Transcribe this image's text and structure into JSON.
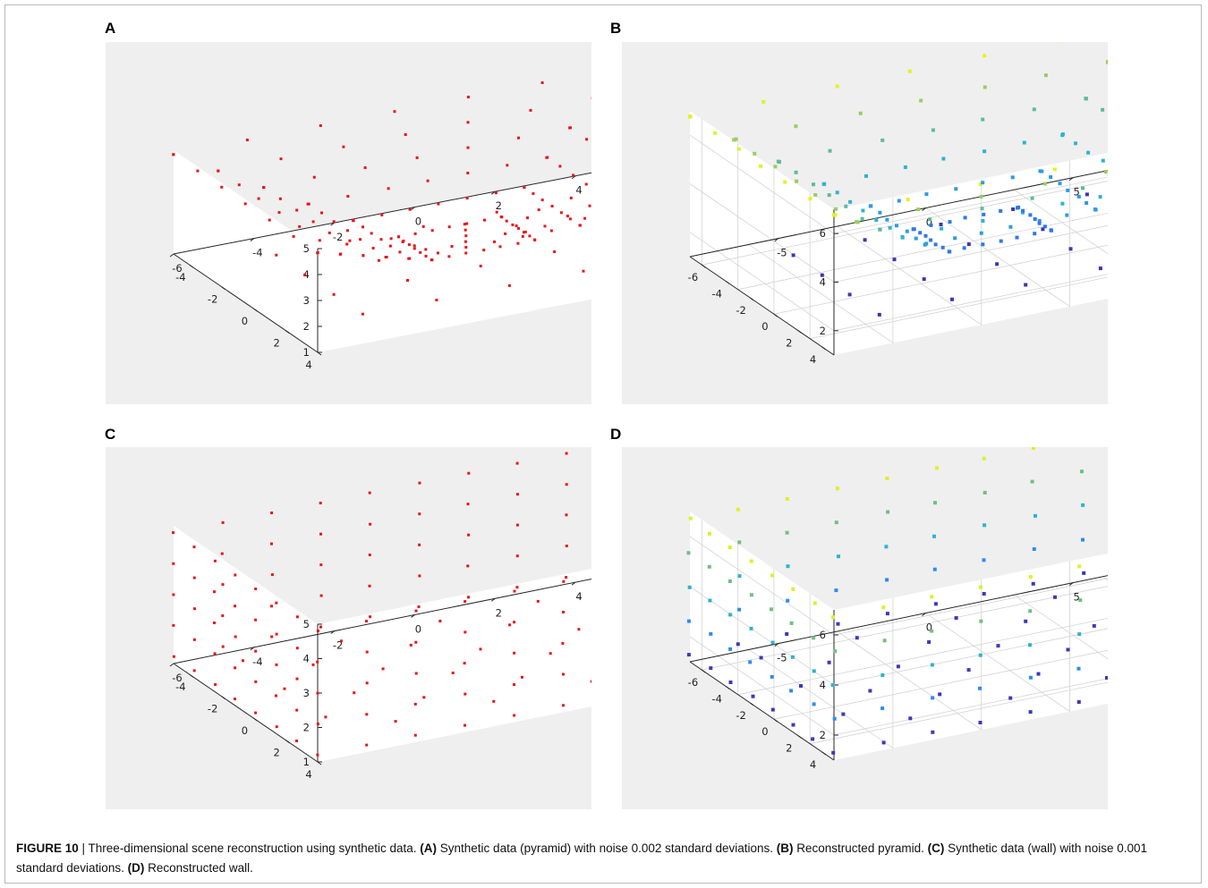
{
  "caption": {
    "figure_label": "FIGURE 10",
    "sep": " | ",
    "intro": "Three-dimensional scene reconstruction using synthetic data.",
    "parts": [
      {
        "label": "(A)",
        "text": "Synthetic data (pyramid) with noise 0.002 standard deviations."
      },
      {
        "label": "(B)",
        "text": "Reconstructed pyramid."
      },
      {
        "label": "(C)",
        "text": "Synthetic data (wall) with noise 0.001 standard deviations."
      },
      {
        "label": "(D)",
        "text": "Reconstructed wall."
      }
    ]
  },
  "colors": {
    "panel_bg": "#efefef",
    "axes_fill": "#ffffff",
    "grid": "#d4d4d4",
    "axis_line": "#262626",
    "red_marker": "#e8141b",
    "parula_low": "#3e26a8",
    "parula_mid": "#2ab5cf",
    "parula_high": "#f9fb0e"
  },
  "chart_data": [
    {
      "panel": "A",
      "type": "scatter",
      "subtype": "3d-scatter",
      "scene": "pyramid",
      "marker_color": "red",
      "grid": false,
      "x_ticks": [
        "-6",
        "-4",
        "-2",
        "0",
        "2",
        "4"
      ],
      "y_ticks": [
        "-4",
        "-2",
        "0",
        "2",
        "4"
      ],
      "z_ticks": [
        "1",
        "2",
        "3",
        "4",
        "5"
      ],
      "xlim": [
        -6,
        5
      ],
      "ylim": [
        -5,
        4
      ],
      "zlim": [
        1,
        5
      ],
      "grid_step": 1
    },
    {
      "panel": "B",
      "type": "scatter",
      "subtype": "3d-scatter",
      "scene": "pyramid",
      "marker_color": "parula-by-height",
      "grid": true,
      "x_ticks": [
        "-5",
        "0",
        "5"
      ],
      "y_ticks": [
        "-6",
        "-4",
        "-2",
        "0",
        "2",
        "4"
      ],
      "z_ticks": [
        "2",
        "4",
        "6"
      ],
      "xlim": [
        -8,
        7
      ],
      "ylim": [
        -7,
        5
      ],
      "zlim": [
        1,
        7
      ],
      "grid_step": 1.5
    },
    {
      "panel": "C",
      "type": "scatter",
      "subtype": "3d-scatter",
      "scene": "wall",
      "marker_color": "red",
      "grid": false,
      "x_ticks": [
        "-6",
        "-4",
        "-2",
        "0",
        "2",
        "4"
      ],
      "y_ticks": [
        "-4",
        "-2",
        "0",
        "2",
        "4"
      ],
      "z_ticks": [
        "1",
        "2",
        "3",
        "4",
        "5"
      ],
      "xlim": [
        -6,
        5
      ],
      "ylim": [
        -5,
        4
      ],
      "zlim": [
        1,
        5
      ],
      "grid_step": 1
    },
    {
      "panel": "D",
      "type": "scatter",
      "subtype": "3d-scatter",
      "scene": "wall",
      "marker_color": "parula-by-height",
      "grid": true,
      "x_ticks": [
        "-5",
        "0",
        "5"
      ],
      "y_ticks": [
        "-6",
        "-4",
        "-2",
        "0",
        "2",
        "4"
      ],
      "z_ticks": [
        "2",
        "4",
        "6"
      ],
      "xlim": [
        -8,
        7
      ],
      "ylim": [
        -7,
        5
      ],
      "zlim": [
        1,
        7
      ],
      "grid_step": 1.5
    }
  ]
}
